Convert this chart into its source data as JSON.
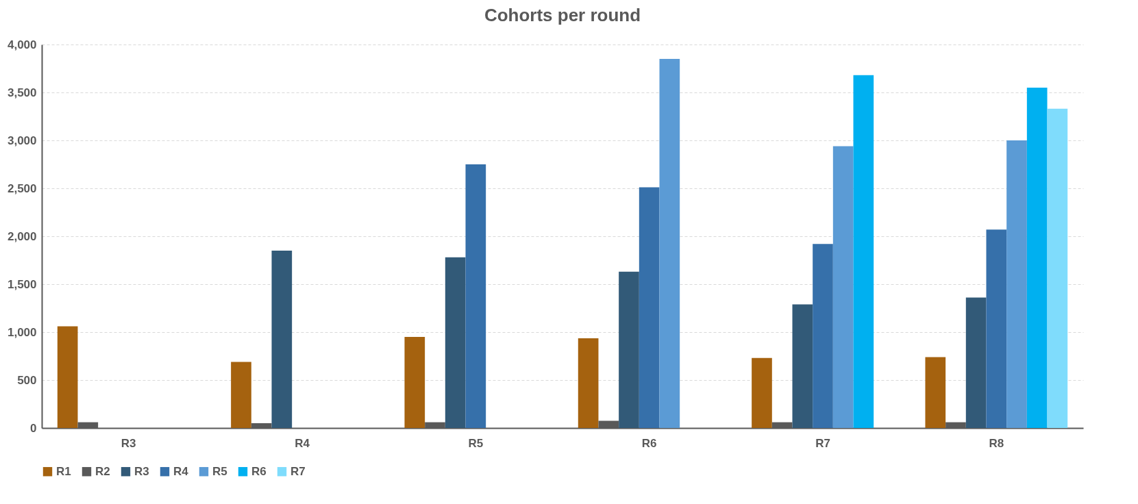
{
  "chart_data": {
    "type": "bar",
    "title": "Cohorts per round",
    "categories": [
      "R3",
      "R4",
      "R5",
      "R6",
      "R7",
      "R8"
    ],
    "series": [
      {
        "name": "R1",
        "color": "#a5620f",
        "values": [
          1060,
          690,
          950,
          935,
          730,
          740
        ]
      },
      {
        "name": "R2",
        "color": "#595959",
        "values": [
          60,
          50,
          60,
          75,
          60,
          60
        ]
      },
      {
        "name": "R3",
        "color": "#325a78",
        "values": [
          null,
          1850,
          1780,
          1630,
          1290,
          1360
        ]
      },
      {
        "name": "R4",
        "color": "#3670aa",
        "values": [
          null,
          null,
          2750,
          2510,
          1920,
          2070
        ]
      },
      {
        "name": "R5",
        "color": "#5b9bd5",
        "values": [
          null,
          null,
          null,
          3850,
          2940,
          3000
        ]
      },
      {
        "name": "R6",
        "color": "#00b0f0",
        "values": [
          null,
          null,
          null,
          null,
          3680,
          3550
        ]
      },
      {
        "name": "R7",
        "color": "#7fdcfc",
        "values": [
          null,
          null,
          null,
          null,
          null,
          3330
        ]
      }
    ],
    "ylim": [
      0,
      4000
    ],
    "yticks": [
      0,
      500,
      {
        "value": 1000,
        "label": "1,000"
      },
      {
        "value": 1500,
        "label": "1,500"
      },
      {
        "value": 2000,
        "label": "2,000"
      },
      {
        "value": 2500,
        "label": "2,500"
      },
      {
        "value": 3000,
        "label": "3,000"
      },
      {
        "value": 3500,
        "label": "3,500"
      },
      {
        "value": 4000,
        "label": "4,000"
      }
    ],
    "grid": "y",
    "legend": "bottom"
  }
}
